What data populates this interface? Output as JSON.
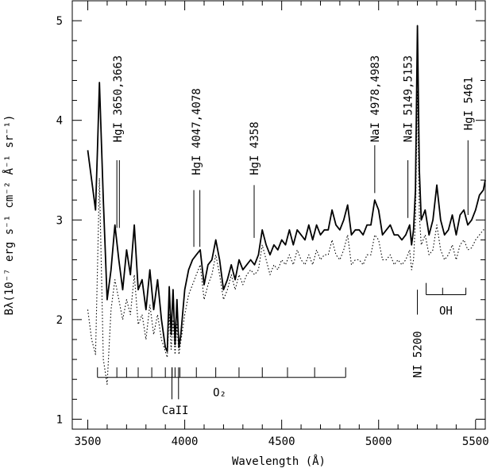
{
  "chart_data": {
    "type": "line",
    "xlabel": "Wavelength (Å)",
    "ylabel": "Bλ(10⁻⁷ erg s⁻¹ cm⁻² Å⁻¹ sr⁻¹)",
    "xlim": [
      3420,
      5550
    ],
    "ylim": [
      0.9,
      5.2
    ],
    "xticks": [
      3500,
      4000,
      4500,
      5000,
      5500
    ],
    "xtick_labels": [
      "3500",
      "4000",
      "4500",
      "5000",
      "5500"
    ],
    "yticks": [
      1,
      2,
      3,
      4,
      5
    ],
    "ytick_labels": [
      "1",
      "2",
      "3",
      "4",
      "5"
    ],
    "grid": false,
    "legend": "none",
    "series": [
      {
        "style": "solid",
        "x": [
          3500,
          3520,
          3540,
          3550,
          3560,
          3580,
          3600,
          3620,
          3640,
          3660,
          3680,
          3700,
          3720,
          3740,
          3760,
          3780,
          3800,
          3820,
          3840,
          3860,
          3880,
          3900,
          3910,
          3920,
          3930,
          3940,
          3950,
          3960,
          3970,
          3980,
          4000,
          4020,
          4040,
          4060,
          4080,
          4100,
          4120,
          4140,
          4160,
          4180,
          4200,
          4220,
          4240,
          4260,
          4280,
          4300,
          4320,
          4340,
          4360,
          4380,
          4400,
          4420,
          4440,
          4460,
          4480,
          4500,
          4520,
          4540,
          4560,
          4580,
          4600,
          4620,
          4640,
          4660,
          4680,
          4700,
          4720,
          4740,
          4760,
          4780,
          4800,
          4820,
          4840,
          4860,
          4880,
          4900,
          4920,
          4940,
          4960,
          4980,
          5000,
          5020,
          5040,
          5060,
          5080,
          5100,
          5120,
          5140,
          5160,
          5170,
          5180,
          5190,
          5200,
          5210,
          5220,
          5240,
          5260,
          5280,
          5300,
          5320,
          5340,
          5360,
          5380,
          5400,
          5420,
          5440,
          5460,
          5480,
          5500,
          5520,
          5540,
          5550
        ],
        "y": [
          3.7,
          3.4,
          3.1,
          3.7,
          4.38,
          3.2,
          2.2,
          2.5,
          2.95,
          2.6,
          2.3,
          2.7,
          2.45,
          2.95,
          2.3,
          2.4,
          2.1,
          2.5,
          2.1,
          2.4,
          2.0,
          1.72,
          1.68,
          2.33,
          1.85,
          2.3,
          1.75,
          2.2,
          1.72,
          1.85,
          2.3,
          2.5,
          2.6,
          2.65,
          2.7,
          2.35,
          2.55,
          2.6,
          2.8,
          2.6,
          2.3,
          2.4,
          2.55,
          2.4,
          2.6,
          2.5,
          2.55,
          2.6,
          2.55,
          2.65,
          2.9,
          2.75,
          2.65,
          2.75,
          2.7,
          2.8,
          2.75,
          2.9,
          2.75,
          2.9,
          2.85,
          2.8,
          2.95,
          2.8,
          2.95,
          2.85,
          2.9,
          2.9,
          3.1,
          2.95,
          2.9,
          3.0,
          3.15,
          2.85,
          2.9,
          2.9,
          2.85,
          2.95,
          2.95,
          3.2,
          3.1,
          2.85,
          2.9,
          2.95,
          2.85,
          2.85,
          2.8,
          2.85,
          2.95,
          2.75,
          2.9,
          3.3,
          4.95,
          3.5,
          3.0,
          3.1,
          2.85,
          3.0,
          3.35,
          3.0,
          2.85,
          2.9,
          3.05,
          2.85,
          3.05,
          3.1,
          2.95,
          3.0,
          3.1,
          3.25,
          3.3,
          3.4
        ]
      },
      {
        "style": "dotted",
        "x": [
          3500,
          3520,
          3540,
          3550,
          3560,
          3580,
          3600,
          3620,
          3640,
          3660,
          3680,
          3700,
          3720,
          3740,
          3760,
          3780,
          3800,
          3820,
          3840,
          3860,
          3880,
          3900,
          3910,
          3920,
          3930,
          3940,
          3950,
          3960,
          3970,
          3980,
          4000,
          4020,
          4040,
          4060,
          4080,
          4100,
          4120,
          4140,
          4160,
          4180,
          4200,
          4220,
          4240,
          4260,
          4280,
          4300,
          4320,
          4340,
          4360,
          4380,
          4400,
          4420,
          4440,
          4460,
          4480,
          4500,
          4520,
          4540,
          4560,
          4580,
          4600,
          4620,
          4640,
          4660,
          4680,
          4700,
          4720,
          4740,
          4760,
          4780,
          4800,
          4820,
          4840,
          4860,
          4880,
          4900,
          4920,
          4940,
          4960,
          4980,
          5000,
          5020,
          5040,
          5060,
          5080,
          5100,
          5120,
          5140,
          5160,
          5170,
          5180,
          5190,
          5200,
          5210,
          5220,
          5240,
          5260,
          5280,
          5300,
          5320,
          5340,
          5360,
          5380,
          5400,
          5420,
          5440,
          5460,
          5480,
          5500,
          5520,
          5540,
          5550
        ],
        "y": [
          2.1,
          1.8,
          1.65,
          2.5,
          3.42,
          1.6,
          1.35,
          2.1,
          2.4,
          2.2,
          2.0,
          2.2,
          2.05,
          2.45,
          1.95,
          2.05,
          1.8,
          2.15,
          1.85,
          2.05,
          1.8,
          1.68,
          1.62,
          2.05,
          1.7,
          2.0,
          1.65,
          1.95,
          1.65,
          1.78,
          2.05,
          2.25,
          2.35,
          2.45,
          2.55,
          2.2,
          2.35,
          2.45,
          2.65,
          2.45,
          2.2,
          2.3,
          2.45,
          2.3,
          2.45,
          2.35,
          2.45,
          2.5,
          2.45,
          2.5,
          2.75,
          2.6,
          2.45,
          2.55,
          2.5,
          2.6,
          2.55,
          2.65,
          2.55,
          2.7,
          2.6,
          2.55,
          2.65,
          2.55,
          2.7,
          2.6,
          2.65,
          2.65,
          2.8,
          2.65,
          2.6,
          2.7,
          2.85,
          2.55,
          2.6,
          2.6,
          2.55,
          2.65,
          2.65,
          2.85,
          2.8,
          2.6,
          2.6,
          2.65,
          2.55,
          2.6,
          2.55,
          2.6,
          2.7,
          2.5,
          2.6,
          3.0,
          4.3,
          3.05,
          2.75,
          2.85,
          2.65,
          2.7,
          2.95,
          2.7,
          2.6,
          2.65,
          2.75,
          2.6,
          2.75,
          2.8,
          2.7,
          2.72,
          2.8,
          2.85,
          2.9,
          2.9
        ]
      }
    ],
    "annotations": [
      {
        "text": "HgI 3650,3663",
        "lines_x": [
          3650,
          3663
        ],
        "y1": 2.92,
        "y2": 3.6,
        "label_x": 3653,
        "label_y": 3.78
      },
      {
        "text": "HgI 4047,4078",
        "lines_x": [
          4047,
          4078
        ],
        "y1": 2.73,
        "y2": 3.3,
        "label_x": 4060,
        "label_y": 3.45
      },
      {
        "text": "HgI 4358",
        "lines_x": [
          4358
        ],
        "y1": 2.82,
        "y2": 3.35,
        "label_x": 4358,
        "label_y": 3.45
      },
      {
        "text": "NaI 4978,4983",
        "lines_x": [
          4980
        ],
        "y1": 3.27,
        "y2": 3.75,
        "label_x": 4980,
        "label_y": 3.78
      },
      {
        "text": "NaI 5149,5153",
        "lines_x": [
          5151
        ],
        "y1": 3.02,
        "y2": 3.6,
        "label_x": 5151,
        "label_y": 3.78
      },
      {
        "text": "HgI 5461",
        "lines_x": [
          5461
        ],
        "y1": 3.05,
        "y2": 3.8,
        "label_x": 5461,
        "label_y": 3.9
      }
    ],
    "ni_annotation": {
      "text": "NI 5200",
      "x": 5200,
      "y1": 2.05,
      "y2": 2.3,
      "label_y": 1.65
    },
    "o2_bracket": {
      "text": "O₂",
      "x_start": 3550,
      "x_end": 4830,
      "y": 1.42,
      "tick_top": 1.52,
      "minor_ticks": [
        3650,
        3700,
        3760,
        3830,
        3900,
        3935,
        3950,
        3975,
        4060,
        4160,
        4280,
        4400,
        4530,
        4670
      ],
      "label_x": 4180,
      "label_y": 1.23
    },
    "caii_mark": {
      "text": "CaII",
      "lines_x": [
        3934,
        3968
      ],
      "y1": 1.2,
      "y2": 1.52,
      "label_x": 3951,
      "label_y": 1.05
    },
    "oh_bracket": {
      "text": "OH",
      "x_start": 5245,
      "x_end": 5450,
      "y": 2.25,
      "tick_top": 2.32,
      "minor_ticks": [
        5330
      ],
      "label_x": 5347,
      "label_y": 2.05
    }
  }
}
